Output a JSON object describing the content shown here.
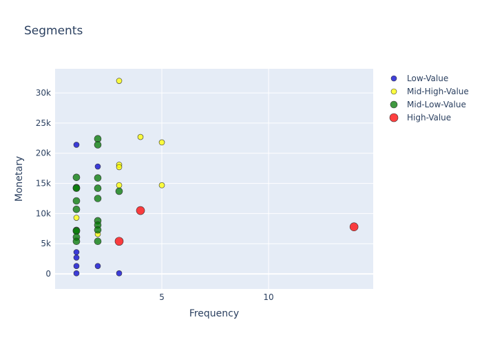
{
  "chart_data": {
    "type": "scatter",
    "title": "Segments",
    "xlabel": "Frequency",
    "ylabel": "Monetary",
    "xlim": [
      0.0,
      14.9
    ],
    "ylim": [
      -2500,
      34000
    ],
    "xticks": [
      5,
      10
    ],
    "xtick_labels": [
      "5",
      "10"
    ],
    "yticks": [
      0,
      5000,
      10000,
      15000,
      20000,
      25000,
      30000
    ],
    "ytick_labels": [
      "0",
      "5k",
      "10k",
      "15k",
      "20k",
      "25k",
      "30k"
    ],
    "grid": true,
    "legend_position": "right",
    "colors": {
      "plot_bg": "#e5ecf6",
      "grid": "#ffffff",
      "text": "#2a3f5f"
    },
    "series": [
      {
        "name": "Low-Value",
        "color": "#0000cc",
        "size": "small",
        "points": [
          [
            1,
            21400
          ],
          [
            1,
            3600
          ],
          [
            1,
            2700
          ],
          [
            1,
            1300
          ],
          [
            1,
            100
          ],
          [
            2,
            17800
          ],
          [
            2,
            1300
          ],
          [
            3,
            100
          ]
        ]
      },
      {
        "name": "Mid-High-Value",
        "color": "#ffff00",
        "size": "small",
        "points": [
          [
            1,
            9300
          ],
          [
            2,
            6600
          ],
          [
            3,
            32000
          ],
          [
            3,
            18100
          ],
          [
            3,
            17700
          ],
          [
            3,
            14700
          ],
          [
            4,
            22700
          ],
          [
            5,
            21800
          ],
          [
            5,
            14700
          ]
        ]
      },
      {
        "name": "Mid-Low-Value",
        "color": "#007700",
        "size": "medium",
        "points": [
          [
            1,
            16000
          ],
          [
            1,
            14300
          ],
          [
            1,
            14200
          ],
          [
            1,
            12100
          ],
          [
            1,
            10700
          ],
          [
            1,
            7200
          ],
          [
            1,
            7100
          ],
          [
            1,
            6100
          ],
          [
            1,
            5400
          ],
          [
            2,
            22400
          ],
          [
            2,
            21400
          ],
          [
            2,
            15900
          ],
          [
            2,
            14200
          ],
          [
            2,
            12500
          ],
          [
            2,
            8800
          ],
          [
            2,
            8100
          ],
          [
            2,
            7300
          ],
          [
            2,
            5400
          ],
          [
            3,
            13700
          ]
        ]
      },
      {
        "name": "High-Value",
        "color": "#ff0000",
        "size": "large",
        "points": [
          [
            3,
            5400
          ],
          [
            4,
            10500
          ],
          [
            14,
            7800
          ]
        ]
      }
    ]
  }
}
